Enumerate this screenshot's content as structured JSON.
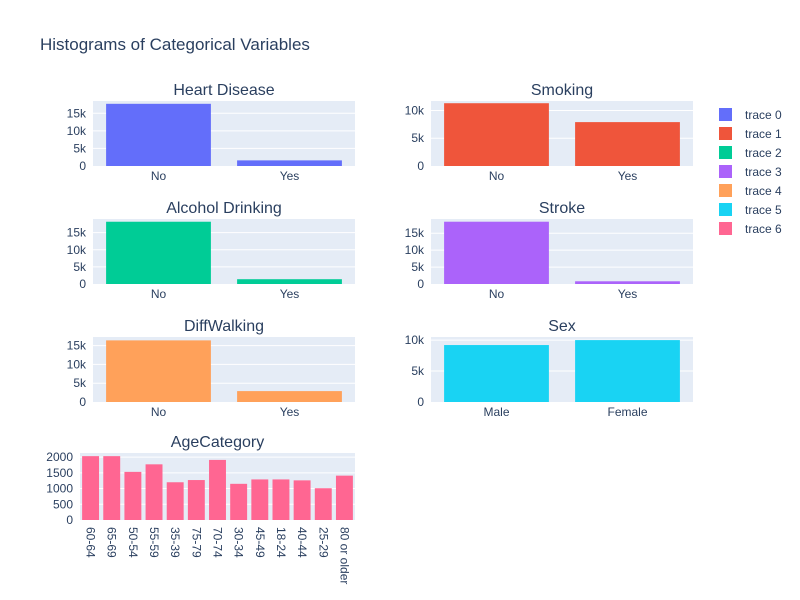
{
  "title": "Histograms of Categorical Variables",
  "colors": [
    "#636efa",
    "#ef553b",
    "#00cc96",
    "#ab63fa",
    "#ffa15a",
    "#19d3f3",
    "#ff6692"
  ],
  "legend": {
    "placement": "right",
    "entries": [
      "trace 0",
      "trace 1",
      "trace 2",
      "trace 3",
      "trace 4",
      "trace 5",
      "trace 6"
    ]
  },
  "chart_data": [
    {
      "type": "bar",
      "title": "Heart Disease",
      "series_name": "trace 0",
      "categories": [
        "No",
        "Yes"
      ],
      "values": [
        17700,
        1600
      ],
      "ylim": [
        0,
        18500
      ],
      "yticks": [
        0,
        5000,
        10000,
        15000
      ],
      "yticklabels": [
        "0",
        "5k",
        "10k",
        "15k"
      ]
    },
    {
      "type": "bar",
      "title": "Smoking",
      "series_name": "trace 1",
      "categories": [
        "No",
        "Yes"
      ],
      "values": [
        11300,
        7900
      ],
      "ylim": [
        0,
        11700
      ],
      "yticks": [
        0,
        5000,
        10000
      ],
      "yticklabels": [
        "0",
        "5k",
        "10k"
      ]
    },
    {
      "type": "bar",
      "title": "Alcohol Drinking",
      "series_name": "trace 2",
      "categories": [
        "No",
        "Yes"
      ],
      "values": [
        18200,
        1400
      ],
      "ylim": [
        0,
        19000
      ],
      "yticks": [
        0,
        5000,
        10000,
        15000
      ],
      "yticklabels": [
        "0",
        "5k",
        "10k",
        "15k"
      ]
    },
    {
      "type": "bar",
      "title": "Stroke",
      "series_name": "trace 3",
      "categories": [
        "No",
        "Yes"
      ],
      "values": [
        18400,
        800
      ],
      "ylim": [
        0,
        19200
      ],
      "yticks": [
        0,
        5000,
        10000,
        15000
      ],
      "yticklabels": [
        "0",
        "5k",
        "10k",
        "15k"
      ]
    },
    {
      "type": "bar",
      "title": "DiffWalking",
      "series_name": "trace 4",
      "categories": [
        "No",
        "Yes"
      ],
      "values": [
        16400,
        2900
      ],
      "ylim": [
        0,
        17300
      ],
      "yticks": [
        0,
        5000,
        10000,
        15000
      ],
      "yticklabels": [
        "0",
        "5k",
        "10k",
        "15k"
      ]
    },
    {
      "type": "bar",
      "title": "Sex",
      "series_name": "trace 5",
      "categories": [
        "Male",
        "Female"
      ],
      "values": [
        9200,
        10000
      ],
      "ylim": [
        0,
        10500
      ],
      "yticks": [
        0,
        5000,
        10000
      ],
      "yticklabels": [
        "0",
        "5k",
        "10k"
      ]
    },
    {
      "type": "bar",
      "title": "AgeCategory",
      "series_name": "trace 6",
      "categories": [
        "60-64",
        "65-69",
        "50-54",
        "55-59",
        "35-39",
        "75-79",
        "70-74",
        "30-34",
        "45-49",
        "18-24",
        "40-44",
        "25-29",
        "80 or older"
      ],
      "values": [
        2030,
        2030,
        1530,
        1770,
        1200,
        1270,
        1910,
        1150,
        1290,
        1290,
        1260,
        1010,
        1410
      ],
      "ylim": [
        0,
        2130
      ],
      "yticks": [
        0,
        500,
        1000,
        1500,
        2000
      ],
      "yticklabels": [
        "0",
        "500",
        "1000",
        "1500",
        "2000"
      ],
      "rotate_xlabels": true
    }
  ]
}
